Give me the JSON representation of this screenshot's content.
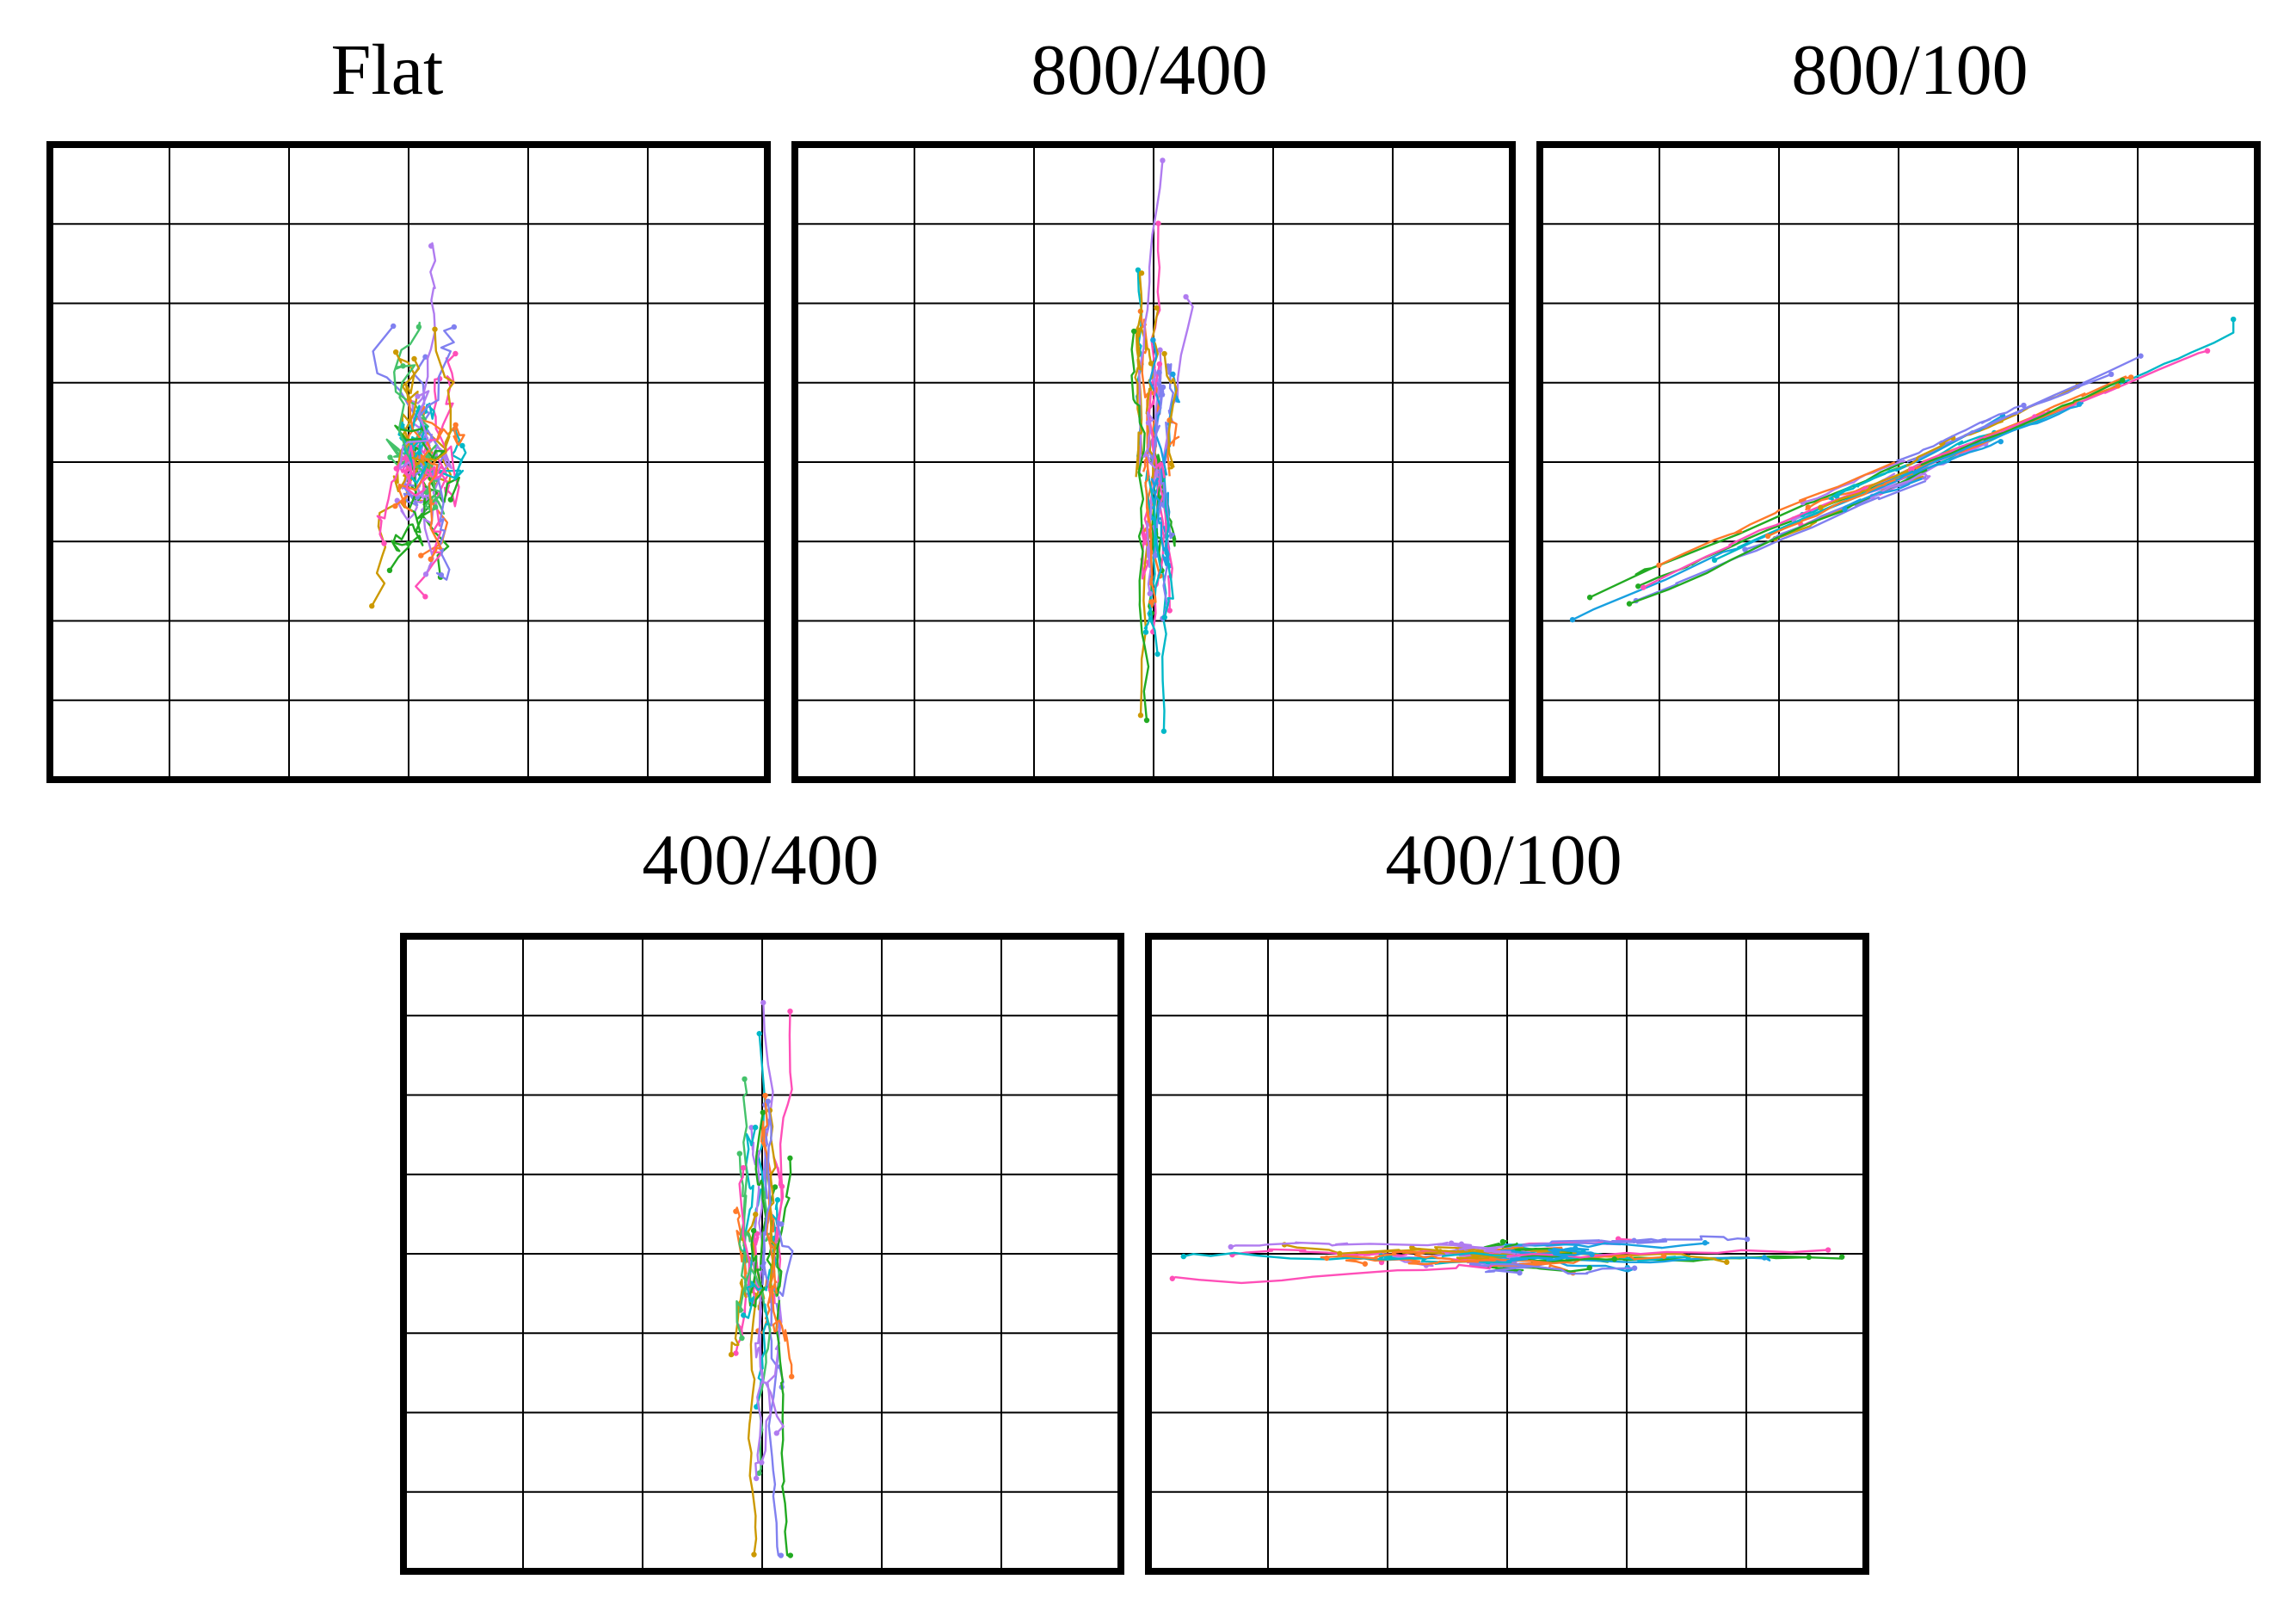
{
  "chart_data": [
    {
      "type": "line",
      "title": "Flat",
      "grid": true,
      "grid_cols": 6,
      "grid_rows": 8,
      "xlim": [
        0,
        6
      ],
      "ylim": [
        0,
        8
      ],
      "cluster": {
        "cx": 3.1,
        "cy": 4.0
      },
      "spread": {
        "x": 0.7,
        "y": 1.2,
        "tilt": 0
      },
      "colors": [
        "#8080f0",
        "#22aa22",
        "#cc9900",
        "#00b8c8",
        "#ff4fb8",
        "#b07cf0",
        "#ff7a2a",
        "#44c26a"
      ]
    },
    {
      "type": "line",
      "title": "800/400",
      "grid": true,
      "grid_cols": 6,
      "grid_rows": 8,
      "xlim": [
        0,
        6
      ],
      "ylim": [
        0,
        8
      ],
      "cluster": {
        "cx": 3.0,
        "cy": 3.9
      },
      "spread": {
        "x": 0.25,
        "y": 1.8,
        "tilt": 0
      },
      "colors": [
        "#00b8c8",
        "#ff4fb8",
        "#cc9900",
        "#22aa22",
        "#8080f0",
        "#ff7a2a",
        "#b07cf0",
        "#18a0e0"
      ]
    },
    {
      "type": "line",
      "title": "800/100",
      "grid": true,
      "grid_cols": 6,
      "grid_rows": 8,
      "xlim": [
        0,
        6
      ],
      "ylim": [
        0,
        8
      ],
      "cluster": {
        "cx": 3.1,
        "cy": 3.9
      },
      "spread": {
        "x": 1.2,
        "y": 0.35,
        "tilt": -0.65
      },
      "colors": [
        "#00b8c8",
        "#ff4fb8",
        "#cc9900",
        "#22aa22",
        "#8080f0",
        "#ff7a2a",
        "#b07cf0",
        "#18a0e0"
      ]
    },
    {
      "type": "line",
      "title": "400/400",
      "grid": true,
      "grid_cols": 6,
      "grid_rows": 8,
      "xlim": [
        0,
        6
      ],
      "ylim": [
        0,
        8
      ],
      "cluster": {
        "cx": 3.0,
        "cy": 3.5
      },
      "spread": {
        "x": 0.25,
        "y": 1.8,
        "tilt": 0
      },
      "colors": [
        "#ff4fb8",
        "#b07cf0",
        "#22aa22",
        "#cc9900",
        "#00b8c8",
        "#ff7a2a",
        "#8080f0",
        "#44c26a"
      ]
    },
    {
      "type": "line",
      "title": "400/100",
      "grid": true,
      "grid_cols": 6,
      "grid_rows": 8,
      "xlim": [
        0,
        6
      ],
      "ylim": [
        0,
        8
      ],
      "cluster": {
        "cx": 3.0,
        "cy": 4.0
      },
      "spread": {
        "x": 1.3,
        "y": 0.3,
        "tilt": 0
      },
      "colors": [
        "#00b8c8",
        "#ff4fb8",
        "#22aa22",
        "#8080f0",
        "#cc9900",
        "#ff7a2a",
        "#b07cf0",
        "#18a0e0"
      ]
    }
  ]
}
